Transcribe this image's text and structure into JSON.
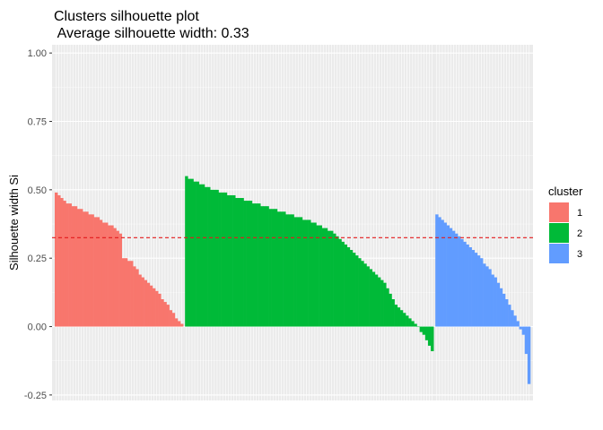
{
  "chart_data": {
    "type": "bar",
    "title_line1": "Clusters silhouette plot",
    "title_line2": " Average silhouette width: 0.33",
    "xlabel": "",
    "ylabel": "Silhouette width Si",
    "ylim": [
      -0.27,
      1.03
    ],
    "yticks": [
      -0.25,
      0.0,
      0.25,
      0.5,
      0.75,
      1.0
    ],
    "ytick_labels": [
      "-0.25",
      "0.00",
      "0.25",
      "0.50",
      "0.75",
      "1.00"
    ],
    "average_line": 0.325,
    "average_line_color": "#e41a1c",
    "grid": true,
    "background": "#ebebeb",
    "legend": {
      "title": "cluster",
      "position": "right",
      "entries": [
        {
          "label": "1",
          "color": "#f8766d"
        },
        {
          "label": "2",
          "color": "#00ba38"
        },
        {
          "label": "3",
          "color": "#619cff"
        }
      ]
    },
    "series": [
      {
        "name": "1",
        "color": "#f8766d",
        "values": [
          0.49,
          0.48,
          0.47,
          0.46,
          0.45,
          0.45,
          0.44,
          0.44,
          0.43,
          0.43,
          0.42,
          0.42,
          0.41,
          0.41,
          0.4,
          0.4,
          0.39,
          0.38,
          0.38,
          0.37,
          0.37,
          0.36,
          0.35,
          0.34,
          0.25,
          0.25,
          0.24,
          0.24,
          0.22,
          0.21,
          0.19,
          0.18,
          0.17,
          0.16,
          0.15,
          0.14,
          0.13,
          0.12,
          0.1,
          0.09,
          0.08,
          0.06,
          0.05,
          0.03,
          0.02,
          0.01
        ]
      },
      {
        "name": "2",
        "color": "#00ba38",
        "values": [
          0.55,
          0.54,
          0.54,
          0.53,
          0.53,
          0.52,
          0.52,
          0.51,
          0.51,
          0.5,
          0.5,
          0.5,
          0.49,
          0.49,
          0.49,
          0.48,
          0.48,
          0.48,
          0.47,
          0.47,
          0.47,
          0.46,
          0.46,
          0.46,
          0.45,
          0.45,
          0.45,
          0.44,
          0.44,
          0.44,
          0.43,
          0.43,
          0.43,
          0.42,
          0.42,
          0.42,
          0.41,
          0.41,
          0.41,
          0.4,
          0.4,
          0.4,
          0.39,
          0.39,
          0.39,
          0.38,
          0.38,
          0.37,
          0.37,
          0.36,
          0.36,
          0.35,
          0.35,
          0.34,
          0.33,
          0.32,
          0.31,
          0.3,
          0.29,
          0.28,
          0.27,
          0.26,
          0.25,
          0.24,
          0.23,
          0.22,
          0.21,
          0.2,
          0.19,
          0.18,
          0.17,
          0.16,
          0.14,
          0.12,
          0.1,
          0.08,
          0.07,
          0.06,
          0.05,
          0.04,
          0.03,
          0.02,
          0.01,
          0.0,
          -0.02,
          -0.03,
          -0.05,
          -0.07,
          -0.09
        ]
      },
      {
        "name": "3",
        "color": "#619cff",
        "values": [
          0.41,
          0.4,
          0.39,
          0.38,
          0.37,
          0.36,
          0.35,
          0.34,
          0.33,
          0.32,
          0.31,
          0.3,
          0.29,
          0.28,
          0.27,
          0.26,
          0.25,
          0.23,
          0.22,
          0.21,
          0.19,
          0.18,
          0.16,
          0.14,
          0.12,
          0.1,
          0.08,
          0.06,
          0.04,
          0.02,
          -0.01,
          -0.03,
          -0.1,
          -0.21
        ]
      }
    ]
  }
}
